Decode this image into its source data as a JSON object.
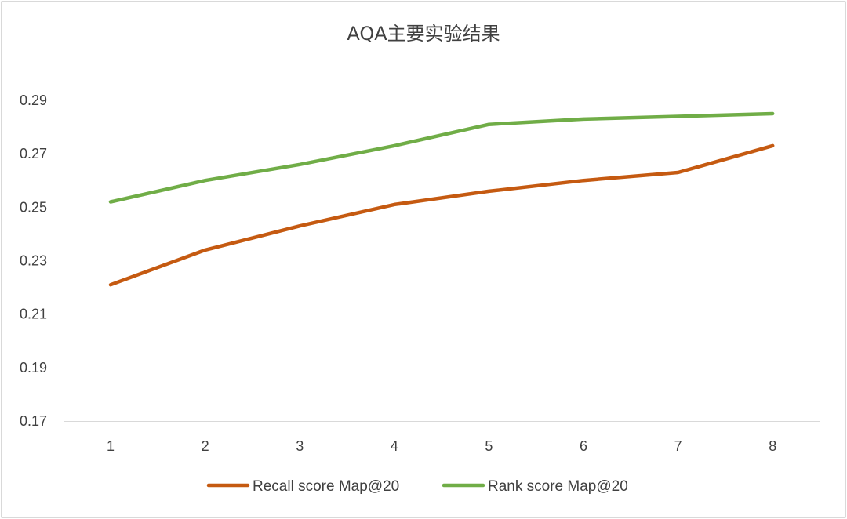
{
  "chart_data": {
    "type": "line",
    "title": "AQA主要实验结果",
    "xlabel": "",
    "ylabel": "",
    "categories": [
      "1",
      "2",
      "3",
      "4",
      "5",
      "6",
      "7",
      "8"
    ],
    "ylim": [
      0.17,
      0.29
    ],
    "yticks": [
      "0.29",
      "0.27",
      "0.25",
      "0.23",
      "0.21",
      "0.19",
      "0.17"
    ],
    "ytick_values": [
      0.29,
      0.27,
      0.25,
      0.23,
      0.21,
      0.19,
      0.17
    ],
    "grid": false,
    "legend_position": "bottom",
    "series": [
      {
        "name": "Recall score Map@20",
        "color": "#C55A11",
        "values": [
          0.221,
          0.234,
          0.243,
          0.251,
          0.256,
          0.26,
          0.263,
          0.273
        ]
      },
      {
        "name": "Rank score Map@20",
        "color": "#70AD47",
        "values": [
          0.252,
          0.26,
          0.266,
          0.273,
          0.281,
          0.283,
          0.284,
          0.285
        ]
      }
    ]
  }
}
